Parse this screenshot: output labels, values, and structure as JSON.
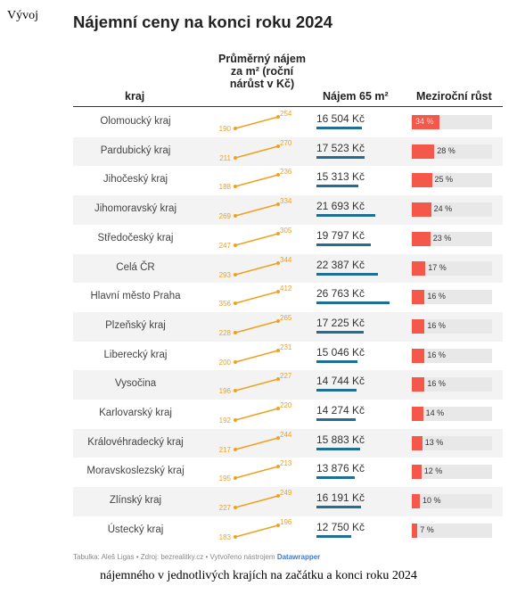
{
  "page_label": "Vývoj",
  "caption": "nájemného v jednotlivých krajích na začátku a konci roku 2024",
  "source": {
    "text": "Tabulka: Aleš Ligas • Zdroj: bezrealitky.cz • Vytvořeno nástrojem",
    "tool": "Datawrapper"
  },
  "colors": {
    "slope": "#f0a020",
    "rent_bar": "#1f6e96",
    "growth_bar": "#f4584a",
    "growth_track": "#e8e8e8"
  },
  "chart_data": {
    "type": "table",
    "title": "Nájemní ceny na konci roku 2024",
    "columns": [
      "kraj",
      "Průměrný nájem za m² (roční nárůst v Kč)",
      "Nájem 65 m²",
      "Meziroční růst"
    ],
    "rows": [
      {
        "region": "Olomoucký kraj",
        "m2_start": 190,
        "m2_end": 254,
        "rent_label": "16 504 Kč",
        "rent": 16504,
        "growth": 34,
        "growth_label": "34 %"
      },
      {
        "region": "Pardubický kraj",
        "m2_start": 211,
        "m2_end": 270,
        "rent_label": "17 523 Kč",
        "rent": 17523,
        "growth": 28,
        "growth_label": "28 %"
      },
      {
        "region": "Jihočeský kraj",
        "m2_start": 188,
        "m2_end": 236,
        "rent_label": "15 313 Kč",
        "rent": 15313,
        "growth": 25,
        "growth_label": "25 %"
      },
      {
        "region": "Jihomoravský kraj",
        "m2_start": 269,
        "m2_end": 334,
        "rent_label": "21 693 Kč",
        "rent": 21693,
        "growth": 24,
        "growth_label": "24 %"
      },
      {
        "region": "Středočeský kraj",
        "m2_start": 247,
        "m2_end": 305,
        "rent_label": "19 797 Kč",
        "rent": 19797,
        "growth": 23,
        "growth_label": "23 %"
      },
      {
        "region": "Celá ČR",
        "m2_start": 293,
        "m2_end": 344,
        "rent_label": "22 387 Kč",
        "rent": 22387,
        "growth": 17,
        "growth_label": "17 %"
      },
      {
        "region": "Hlavní město Praha",
        "m2_start": 356,
        "m2_end": 412,
        "rent_label": "26 763 Kč",
        "rent": 26763,
        "growth": 16,
        "growth_label": "16 %"
      },
      {
        "region": "Plzeňský kraj",
        "m2_start": 228,
        "m2_end": 265,
        "rent_label": "17 225 Kč",
        "rent": 17225,
        "growth": 16,
        "growth_label": "16 %"
      },
      {
        "region": "Liberecký kraj",
        "m2_start": 200,
        "m2_end": 231,
        "rent_label": "15 046 Kč",
        "rent": 15046,
        "growth": 16,
        "growth_label": "16 %"
      },
      {
        "region": "Vysočina",
        "m2_start": 196,
        "m2_end": 227,
        "rent_label": "14 744 Kč",
        "rent": 14744,
        "growth": 16,
        "growth_label": "16 %"
      },
      {
        "region": "Karlovarský kraj",
        "m2_start": 192,
        "m2_end": 220,
        "rent_label": "14 274 Kč",
        "rent": 14274,
        "growth": 14,
        "growth_label": "14 %"
      },
      {
        "region": "Královéhradecký kraj",
        "m2_start": 217,
        "m2_end": 244,
        "rent_label": "15 883 Kč",
        "rent": 15883,
        "growth": 13,
        "growth_label": "13 %"
      },
      {
        "region": "Moravskoslezský kraj",
        "m2_start": 195,
        "m2_end": 213,
        "rent_label": "13 876 Kč",
        "rent": 13876,
        "growth": 12,
        "growth_label": "12 %"
      },
      {
        "region": "Zlínský kraj",
        "m2_start": 227,
        "m2_end": 249,
        "rent_label": "16 191 Kč",
        "rent": 16191,
        "growth": 10,
        "growth_label": "10 %"
      },
      {
        "region": "Ústecký kraj",
        "m2_start": 183,
        "m2_end": 196,
        "rent_label": "12 750 Kč",
        "rent": 12750,
        "growth": 7,
        "growth_label": "7 %"
      }
    ]
  }
}
